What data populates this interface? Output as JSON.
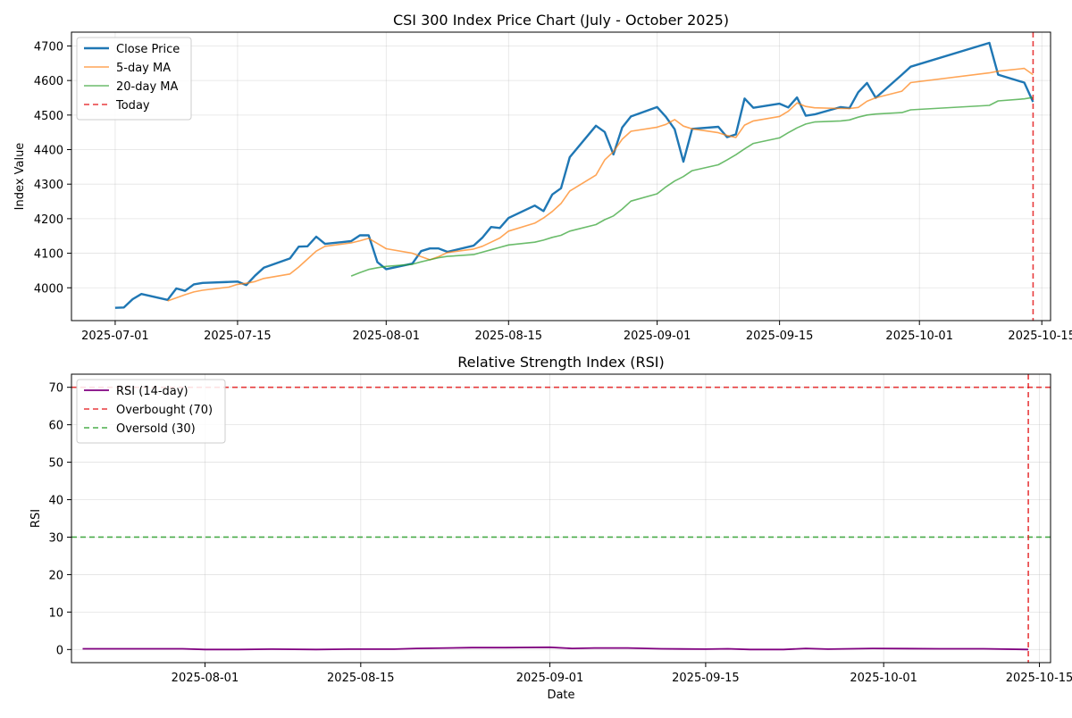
{
  "figure": {
    "top_title": "CSI 300 Index Price Chart (July - October 2025)",
    "bottom_title": "Relative Strength Index (RSI)"
  },
  "chart_data": [
    {
      "type": "line",
      "title": "CSI 300 Index Price Chart (July - October 2025)",
      "xlabel": "",
      "ylabel": "Index Value",
      "x_axis": "date",
      "xlim": [
        "2025-06-26",
        "2025-10-16"
      ],
      "ylim": [
        3905,
        4740
      ],
      "x_ticks": [
        "2025-07-01",
        "2025-07-15",
        "2025-08-01",
        "2025-08-15",
        "2025-09-01",
        "2025-09-15",
        "2025-10-01",
        "2025-10-15"
      ],
      "y_ticks": [
        4000,
        4100,
        4200,
        4300,
        4400,
        4500,
        4600,
        4700
      ],
      "grid": true,
      "legend_position": "top-left",
      "series": [
        {
          "name": "Close Price",
          "color": "#1f77b4",
          "points": [
            [
              "2025-07-01",
              3942
            ],
            [
              "2025-07-02",
              3943
            ],
            [
              "2025-07-03",
              3967
            ],
            [
              "2025-07-04",
              3982
            ],
            [
              "2025-07-07",
              3965
            ],
            [
              "2025-07-08",
              3998
            ],
            [
              "2025-07-09",
              3991
            ],
            [
              "2025-07-10",
              4010
            ],
            [
              "2025-07-11",
              4014
            ],
            [
              "2025-07-14",
              4017
            ],
            [
              "2025-07-15",
              4018
            ],
            [
              "2025-07-16",
              4008
            ],
            [
              "2025-07-17",
              4035
            ],
            [
              "2025-07-18",
              4058
            ],
            [
              "2025-07-21",
              4085
            ],
            [
              "2025-07-22",
              4119
            ],
            [
              "2025-07-23",
              4120
            ],
            [
              "2025-07-24",
              4148
            ],
            [
              "2025-07-25",
              4127
            ],
            [
              "2025-07-28",
              4135
            ],
            [
              "2025-07-29",
              4152
            ],
            [
              "2025-07-30",
              4152
            ],
            [
              "2025-07-31",
              4074
            ],
            [
              "2025-08-01",
              4054
            ],
            [
              "2025-08-04",
              4070
            ],
            [
              "2025-08-05",
              4106
            ],
            [
              "2025-08-06",
              4114
            ],
            [
              "2025-08-07",
              4114
            ],
            [
              "2025-08-08",
              4104
            ],
            [
              "2025-08-11",
              4122
            ],
            [
              "2025-08-12",
              4145
            ],
            [
              "2025-08-13",
              4176
            ],
            [
              "2025-08-14",
              4173
            ],
            [
              "2025-08-15",
              4202
            ],
            [
              "2025-08-18",
              4238
            ],
            [
              "2025-08-19",
              4222
            ],
            [
              "2025-08-20",
              4270
            ],
            [
              "2025-08-21",
              4288
            ],
            [
              "2025-08-22",
              4378
            ],
            [
              "2025-08-25",
              4469
            ],
            [
              "2025-08-26",
              4451
            ],
            [
              "2025-08-27",
              4386
            ],
            [
              "2025-08-28",
              4464
            ],
            [
              "2025-08-29",
              4496
            ],
            [
              "2025-09-01",
              4523
            ],
            [
              "2025-09-02",
              4495
            ],
            [
              "2025-09-03",
              4459
            ],
            [
              "2025-09-04",
              4365
            ],
            [
              "2025-09-05",
              4460
            ],
            [
              "2025-09-08",
              4466
            ],
            [
              "2025-09-09",
              4436
            ],
            [
              "2025-09-10",
              4444
            ],
            [
              "2025-09-11",
              4548
            ],
            [
              "2025-09-12",
              4521
            ],
            [
              "2025-09-15",
              4533
            ],
            [
              "2025-09-16",
              4522
            ],
            [
              "2025-09-17",
              4551
            ],
            [
              "2025-09-18",
              4498
            ],
            [
              "2025-09-19",
              4502
            ],
            [
              "2025-09-22",
              4523
            ],
            [
              "2025-09-23",
              4520
            ],
            [
              "2025-09-24",
              4566
            ],
            [
              "2025-09-25",
              4593
            ],
            [
              "2025-09-26",
              4550
            ],
            [
              "2025-09-29",
              4617
            ],
            [
              "2025-09-30",
              4640
            ],
            [
              "2025-10-09",
              4709
            ],
            [
              "2025-10-10",
              4617
            ],
            [
              "2025-10-13",
              4594
            ],
            [
              "2025-10-14",
              4538
            ]
          ]
        },
        {
          "name": "5-day MA",
          "color": "#ff7f0e",
          "points": [
            [
              "2025-07-07",
              3962
            ],
            [
              "2025-07-08",
              3971
            ],
            [
              "2025-07-09",
              3980
            ],
            [
              "2025-07-10",
              3988
            ],
            [
              "2025-07-11",
              3993
            ],
            [
              "2025-07-14",
              4002
            ],
            [
              "2025-07-15",
              4010
            ],
            [
              "2025-07-16",
              4013
            ],
            [
              "2025-07-17",
              4018
            ],
            [
              "2025-07-18",
              4027
            ],
            [
              "2025-07-21",
              4040
            ],
            [
              "2025-07-22",
              4060
            ],
            [
              "2025-07-23",
              4083
            ],
            [
              "2025-07-24",
              4106
            ],
            [
              "2025-07-25",
              4120
            ],
            [
              "2025-07-28",
              4130
            ],
            [
              "2025-07-29",
              4136
            ],
            [
              "2025-07-30",
              4143
            ],
            [
              "2025-07-31",
              4128
            ],
            [
              "2025-08-01",
              4113
            ],
            [
              "2025-08-04",
              4100
            ],
            [
              "2025-08-05",
              4090
            ],
            [
              "2025-08-06",
              4081
            ],
            [
              "2025-08-07",
              4090
            ],
            [
              "2025-08-08",
              4102
            ],
            [
              "2025-08-11",
              4112
            ],
            [
              "2025-08-12",
              4120
            ],
            [
              "2025-08-13",
              4132
            ],
            [
              "2025-08-14",
              4144
            ],
            [
              "2025-08-15",
              4164
            ],
            [
              "2025-08-18",
              4187
            ],
            [
              "2025-08-19",
              4202
            ],
            [
              "2025-08-20",
              4221
            ],
            [
              "2025-08-21",
              4244
            ],
            [
              "2025-08-22",
              4280
            ],
            [
              "2025-08-25",
              4326
            ],
            [
              "2025-08-26",
              4370
            ],
            [
              "2025-08-27",
              4394
            ],
            [
              "2025-08-28",
              4430
            ],
            [
              "2025-08-29",
              4453
            ],
            [
              "2025-09-01",
              4465
            ],
            [
              "2025-09-02",
              4473
            ],
            [
              "2025-09-03",
              4487
            ],
            [
              "2025-09-04",
              4468
            ],
            [
              "2025-09-05",
              4460
            ],
            [
              "2025-09-08",
              4449
            ],
            [
              "2025-09-09",
              4441
            ],
            [
              "2025-09-10",
              4435
            ],
            [
              "2025-09-11",
              4471
            ],
            [
              "2025-09-12",
              4483
            ],
            [
              "2025-09-15",
              4496
            ],
            [
              "2025-09-16",
              4511
            ],
            [
              "2025-09-17",
              4535
            ],
            [
              "2025-09-18",
              4525
            ],
            [
              "2025-09-19",
              4521
            ],
            [
              "2025-09-22",
              4519
            ],
            [
              "2025-09-23",
              4519
            ],
            [
              "2025-09-24",
              4522
            ],
            [
              "2025-09-25",
              4540
            ],
            [
              "2025-09-26",
              4550
            ],
            [
              "2025-09-29",
              4569
            ],
            [
              "2025-09-30",
              4594
            ],
            [
              "2025-10-09",
              4622
            ],
            [
              "2025-10-10",
              4627
            ],
            [
              "2025-10-13",
              4635
            ],
            [
              "2025-10-14",
              4617
            ]
          ]
        },
        {
          "name": "20-day MA",
          "color": "#2ca02c",
          "points": [
            [
              "2025-07-28",
              4034
            ],
            [
              "2025-07-29",
              4044
            ],
            [
              "2025-07-30",
              4053
            ],
            [
              "2025-07-31",
              4058
            ],
            [
              "2025-08-01",
              4062
            ],
            [
              "2025-08-04",
              4068
            ],
            [
              "2025-08-05",
              4075
            ],
            [
              "2025-08-06",
              4081
            ],
            [
              "2025-08-07",
              4087
            ],
            [
              "2025-08-08",
              4091
            ],
            [
              "2025-08-11",
              4096
            ],
            [
              "2025-08-12",
              4103
            ],
            [
              "2025-08-13",
              4110
            ],
            [
              "2025-08-14",
              4117
            ],
            [
              "2025-08-15",
              4124
            ],
            [
              "2025-08-18",
              4132
            ],
            [
              "2025-08-19",
              4138
            ],
            [
              "2025-08-20",
              4146
            ],
            [
              "2025-08-21",
              4152
            ],
            [
              "2025-08-22",
              4164
            ],
            [
              "2025-08-25",
              4183
            ],
            [
              "2025-08-26",
              4197
            ],
            [
              "2025-08-27",
              4208
            ],
            [
              "2025-08-28",
              4228
            ],
            [
              "2025-08-29",
              4251
            ],
            [
              "2025-09-01",
              4272
            ],
            [
              "2025-09-02",
              4292
            ],
            [
              "2025-09-03",
              4309
            ],
            [
              "2025-09-04",
              4322
            ],
            [
              "2025-09-05",
              4339
            ],
            [
              "2025-09-08",
              4356
            ],
            [
              "2025-09-09",
              4370
            ],
            [
              "2025-09-10",
              4385
            ],
            [
              "2025-09-11",
              4402
            ],
            [
              "2025-09-12",
              4418
            ],
            [
              "2025-09-15",
              4434
            ],
            [
              "2025-09-16",
              4449
            ],
            [
              "2025-09-17",
              4463
            ],
            [
              "2025-09-18",
              4474
            ],
            [
              "2025-09-19",
              4480
            ],
            [
              "2025-09-22",
              4483
            ],
            [
              "2025-09-23",
              4486
            ],
            [
              "2025-09-24",
              4494
            ],
            [
              "2025-09-25",
              4500
            ],
            [
              "2025-09-26",
              4503
            ],
            [
              "2025-09-29",
              4507
            ],
            [
              "2025-09-30",
              4515
            ],
            [
              "2025-10-09",
              4528
            ],
            [
              "2025-10-10",
              4541
            ],
            [
              "2025-10-13",
              4547
            ],
            [
              "2025-10-14",
              4551
            ]
          ]
        }
      ],
      "markers": [
        {
          "name": "Today",
          "type": "vline",
          "x": "2025-10-14",
          "color": "#e41a1c"
        }
      ]
    },
    {
      "type": "line",
      "title": "Relative Strength Index (RSI)",
      "xlabel": "Date",
      "ylabel": "RSI",
      "x_axis": "date",
      "xlim": [
        "2025-07-20",
        "2025-10-16"
      ],
      "ylim": [
        -3.5,
        73.5
      ],
      "x_ticks": [
        "2025-08-01",
        "2025-08-15",
        "2025-09-01",
        "2025-09-15",
        "2025-10-01",
        "2025-10-15"
      ],
      "y_ticks": [
        0,
        10,
        20,
        30,
        40,
        50,
        60,
        70
      ],
      "grid": true,
      "legend_position": "top-left",
      "series": [
        {
          "name": "RSI (14-day)",
          "color": "#800080",
          "points": [
            [
              "2025-07-21",
              0.2
            ],
            [
              "2025-07-24",
              0.2
            ],
            [
              "2025-07-28",
              0.2
            ],
            [
              "2025-07-30",
              0.2
            ],
            [
              "2025-08-01",
              0.0
            ],
            [
              "2025-08-04",
              0.0
            ],
            [
              "2025-08-07",
              0.1
            ],
            [
              "2025-08-11",
              0.0
            ],
            [
              "2025-08-14",
              0.1
            ],
            [
              "2025-08-18",
              0.1
            ],
            [
              "2025-08-20",
              0.3
            ],
            [
              "2025-08-25",
              0.5
            ],
            [
              "2025-08-28",
              0.5
            ],
            [
              "2025-09-01",
              0.6
            ],
            [
              "2025-09-03",
              0.3
            ],
            [
              "2025-09-05",
              0.4
            ],
            [
              "2025-09-08",
              0.4
            ],
            [
              "2025-09-11",
              0.2
            ],
            [
              "2025-09-15",
              0.1
            ],
            [
              "2025-09-17",
              0.2
            ],
            [
              "2025-09-19",
              0.0
            ],
            [
              "2025-09-22",
              0.0
            ],
            [
              "2025-09-24",
              0.3
            ],
            [
              "2025-09-26",
              0.1
            ],
            [
              "2025-09-30",
              0.3
            ],
            [
              "2025-10-06",
              0.2
            ],
            [
              "2025-10-10",
              0.2
            ],
            [
              "2025-10-14",
              0.0
            ]
          ]
        }
      ],
      "markers": [
        {
          "name": "Overbought (70)",
          "type": "hline",
          "y": 70,
          "color": "#e41a1c"
        },
        {
          "name": "Oversold (30)",
          "type": "hline",
          "y": 30,
          "color": "#2ca02c"
        },
        {
          "type": "vline",
          "x": "2025-10-14",
          "color": "#e41a1c"
        }
      ]
    }
  ]
}
